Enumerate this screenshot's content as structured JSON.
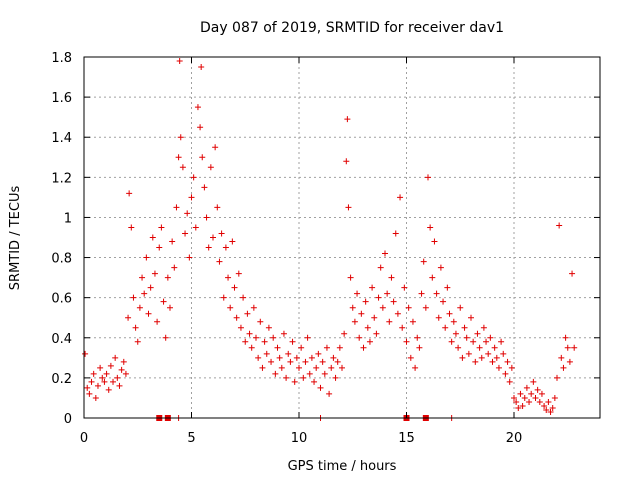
{
  "chart_data": {
    "type": "scatter",
    "title": "Day 087 of 2019, SRMTID for receiver dav1",
    "xlabel": "GPS time / hours",
    "ylabel": "SRMTID / TECUs",
    "xlim": [
      0,
      24
    ],
    "ylim": [
      0,
      1.8
    ],
    "grid": true,
    "xticks": [
      0,
      5,
      10,
      15,
      20
    ],
    "xtick_labels": [
      "0",
      "5",
      "10",
      "15",
      "20"
    ],
    "yticks": [
      0,
      0.2,
      0.4,
      0.6,
      0.8,
      1.0,
      1.2,
      1.4,
      1.6,
      1.8
    ],
    "ytick_labels": [
      "0",
      "0.2",
      "0.4",
      "0.6",
      "0.8",
      "1",
      "1.2",
      "1.4",
      "1.6",
      "1.8"
    ],
    "marker": "+",
    "color": "#e00000",
    "series": [
      {
        "name": "SRMTID",
        "x": [
          0.05,
          0.15,
          0.25,
          0.35,
          0.45,
          0.55,
          0.65,
          0.75,
          0.85,
          0.95,
          1.05,
          1.15,
          1.25,
          1.35,
          1.45,
          1.55,
          1.65,
          1.75,
          1.85,
          1.95,
          2.05,
          2.1,
          2.2,
          2.3,
          2.4,
          2.5,
          2.6,
          2.7,
          2.8,
          2.9,
          3.0,
          3.1,
          3.2,
          3.3,
          3.4,
          3.5,
          3.6,
          3.7,
          3.8,
          3.9,
          4.0,
          4.1,
          4.2,
          4.3,
          4.4,
          4.45,
          4.5,
          4.6,
          4.7,
          4.8,
          4.9,
          5.0,
          5.1,
          5.2,
          5.3,
          5.4,
          5.45,
          5.5,
          5.6,
          5.7,
          5.8,
          5.9,
          6.0,
          6.1,
          6.2,
          6.3,
          6.4,
          6.5,
          6.6,
          6.7,
          6.8,
          6.9,
          7.0,
          7.1,
          7.2,
          7.3,
          7.4,
          7.5,
          7.6,
          7.7,
          7.8,
          7.9,
          8.0,
          8.1,
          8.2,
          8.3,
          8.4,
          8.5,
          8.6,
          8.7,
          8.8,
          8.9,
          9.0,
          9.1,
          9.2,
          9.3,
          9.4,
          9.5,
          9.6,
          9.7,
          9.8,
          9.9,
          10.0,
          10.1,
          10.2,
          10.3,
          10.4,
          10.5,
          10.6,
          10.7,
          10.8,
          10.9,
          11.0,
          11.1,
          11.2,
          11.3,
          11.4,
          11.5,
          11.6,
          11.7,
          11.8,
          11.9,
          12.0,
          12.1,
          12.2,
          12.25,
          12.3,
          12.4,
          12.5,
          12.6,
          12.7,
          12.8,
          12.9,
          13.0,
          13.1,
          13.2,
          13.3,
          13.4,
          13.5,
          13.6,
          13.7,
          13.8,
          13.9,
          14.0,
          14.1,
          14.2,
          14.3,
          14.4,
          14.5,
          14.6,
          14.7,
          14.8,
          14.9,
          15.0,
          15.1,
          15.2,
          15.3,
          15.4,
          15.5,
          15.6,
          15.7,
          15.8,
          15.9,
          16.0,
          16.1,
          16.2,
          16.3,
          16.4,
          16.5,
          16.6,
          16.7,
          16.8,
          16.9,
          17.0,
          17.1,
          17.2,
          17.3,
          17.4,
          17.5,
          17.6,
          17.7,
          17.8,
          17.9,
          18.0,
          18.1,
          18.2,
          18.3,
          18.4,
          18.5,
          18.6,
          18.7,
          18.8,
          18.9,
          19.0,
          19.1,
          19.2,
          19.3,
          19.4,
          19.5,
          19.6,
          19.7,
          19.8,
          19.9,
          20.0,
          20.1,
          20.2,
          20.3,
          20.4,
          20.5,
          20.6,
          20.7,
          20.8,
          20.9,
          21.0,
          21.1,
          21.2,
          21.3,
          21.4,
          21.5,
          21.6,
          21.7,
          21.8,
          21.9,
          22.0,
          22.1,
          22.2,
          22.3,
          22.4,
          22.5,
          22.6,
          22.7,
          22.8
        ],
        "y": [
          0.32,
          0.15,
          0.12,
          0.18,
          0.22,
          0.1,
          0.16,
          0.25,
          0.2,
          0.18,
          0.22,
          0.14,
          0.26,
          0.18,
          0.3,
          0.2,
          0.16,
          0.24,
          0.28,
          0.22,
          0.5,
          1.12,
          0.95,
          0.6,
          0.45,
          0.38,
          0.55,
          0.7,
          0.62,
          0.8,
          0.52,
          0.65,
          0.9,
          0.72,
          0.48,
          0.85,
          0.95,
          0.58,
          0.4,
          0.7,
          0.55,
          0.88,
          0.75,
          1.05,
          1.3,
          1.78,
          1.4,
          1.25,
          0.92,
          1.02,
          0.8,
          1.1,
          1.2,
          0.95,
          1.55,
          1.45,
          1.75,
          1.3,
          1.15,
          1.0,
          0.85,
          1.25,
          0.9,
          1.35,
          1.05,
          0.78,
          0.92,
          0.6,
          0.85,
          0.7,
          0.55,
          0.88,
          0.65,
          0.5,
          0.72,
          0.45,
          0.6,
          0.38,
          0.52,
          0.42,
          0.35,
          0.55,
          0.4,
          0.3,
          0.48,
          0.25,
          0.38,
          0.32,
          0.45,
          0.28,
          0.4,
          0.22,
          0.35,
          0.3,
          0.25,
          0.42,
          0.2,
          0.32,
          0.28,
          0.38,
          0.18,
          0.3,
          0.25,
          0.35,
          0.2,
          0.28,
          0.4,
          0.22,
          0.3,
          0.18,
          0.25,
          0.32,
          0.15,
          0.28,
          0.22,
          0.35,
          0.12,
          0.25,
          0.3,
          0.2,
          0.28,
          0.35,
          0.25,
          0.42,
          1.28,
          1.49,
          1.05,
          0.7,
          0.55,
          0.48,
          0.62,
          0.4,
          0.52,
          0.35,
          0.58,
          0.45,
          0.38,
          0.65,
          0.5,
          0.42,
          0.6,
          0.75,
          0.55,
          0.82,
          0.62,
          0.48,
          0.7,
          0.58,
          0.92,
          0.52,
          1.1,
          0.45,
          0.65,
          0.38,
          0.55,
          0.3,
          0.48,
          0.25,
          0.4,
          0.35,
          0.62,
          0.78,
          0.55,
          1.2,
          0.95,
          0.7,
          0.88,
          0.62,
          0.5,
          0.75,
          0.58,
          0.45,
          0.65,
          0.52,
          0.38,
          0.48,
          0.42,
          0.35,
          0.55,
          0.3,
          0.45,
          0.4,
          0.32,
          0.5,
          0.38,
          0.28,
          0.42,
          0.35,
          0.3,
          0.45,
          0.38,
          0.32,
          0.4,
          0.28,
          0.35,
          0.3,
          0.25,
          0.38,
          0.32,
          0.22,
          0.28,
          0.18,
          0.25,
          0.1,
          0.08,
          0.05,
          0.12,
          0.06,
          0.1,
          0.15,
          0.08,
          0.12,
          0.18,
          0.1,
          0.14,
          0.08,
          0.12,
          0.06,
          0.04,
          0.08,
          0.03,
          0.05,
          0.1,
          0.2,
          0.96,
          0.3,
          0.25,
          0.4,
          0.35,
          0.28,
          0.72,
          0.35
        ]
      }
    ],
    "bottom_marks": [
      {
        "x": 3.5,
        "kind": "block"
      },
      {
        "x": 3.9,
        "kind": "block"
      },
      {
        "x": 4.4,
        "kind": "tick"
      },
      {
        "x": 11.0,
        "kind": "tick"
      },
      {
        "x": 15.0,
        "kind": "block"
      },
      {
        "x": 15.9,
        "kind": "block"
      },
      {
        "x": 17.1,
        "kind": "tick"
      }
    ]
  }
}
